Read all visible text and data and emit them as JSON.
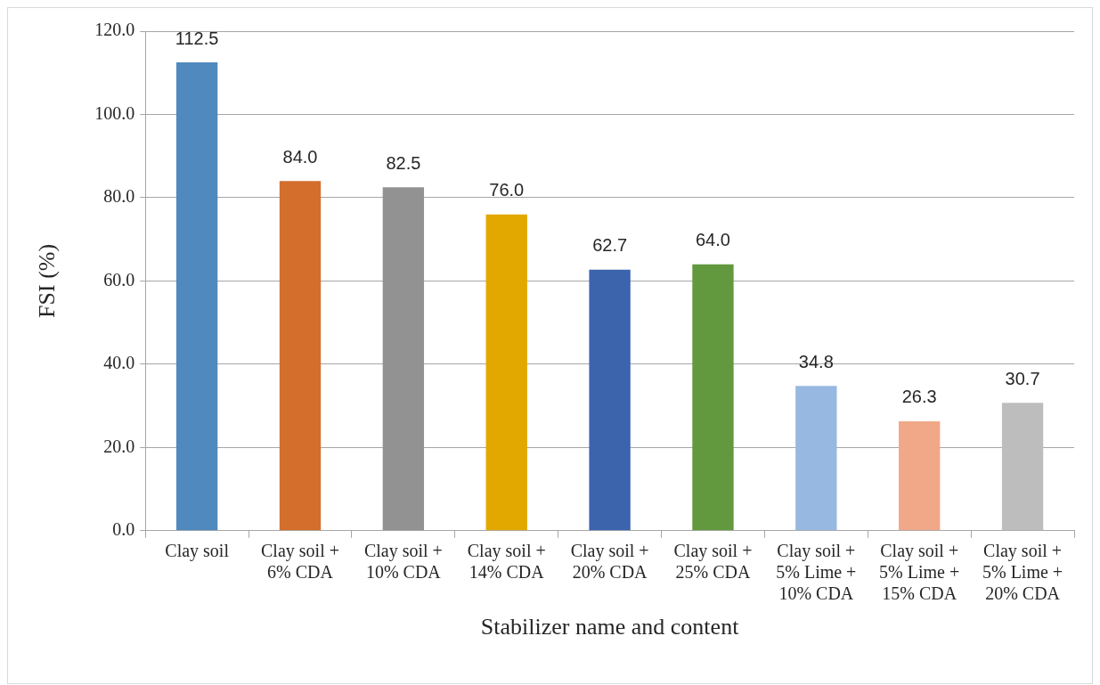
{
  "chart_data": {
    "type": "bar",
    "xlabel": "Stabilizer name and content",
    "ylabel": "FSI (%)",
    "categories": [
      "Clay soil",
      "Clay soil + 6% CDA",
      "Clay soil + 10% CDA",
      "Clay soil + 14% CDA",
      "Clay soil + 20% CDA",
      "Clay soil + 25% CDA",
      "Clay soil + 5% Lime + 10% CDA",
      "Clay soil + 5% Lime + 15% CDA",
      "Clay soil + 5% Lime + 20% CDA"
    ],
    "values": [
      112.5,
      84.0,
      82.5,
      76.0,
      62.7,
      64.0,
      34.8,
      26.3,
      30.7
    ],
    "value_labels": [
      "112.5",
      "84.0",
      "82.5",
      "76.0",
      "62.7",
      "64.0",
      "34.8",
      "26.3",
      "30.7"
    ],
    "colors": [
      "#4f89bd",
      "#d36e2c",
      "#929292",
      "#e3a800",
      "#3b64ad",
      "#62993e",
      "#97b8e0",
      "#f0a888",
      "#bdbdbd"
    ],
    "ylim": [
      0,
      120
    ],
    "yticks": [
      {
        "value": 0,
        "label": "0.0"
      },
      {
        "value": 20,
        "label": "20.0"
      },
      {
        "value": 40,
        "label": "40.0"
      },
      {
        "value": 60,
        "label": "60.0"
      },
      {
        "value": 80,
        "label": "80.0"
      },
      {
        "value": 100,
        "label": "100.0"
      },
      {
        "value": 120,
        "label": "120.0"
      }
    ],
    "grid": "y"
  }
}
